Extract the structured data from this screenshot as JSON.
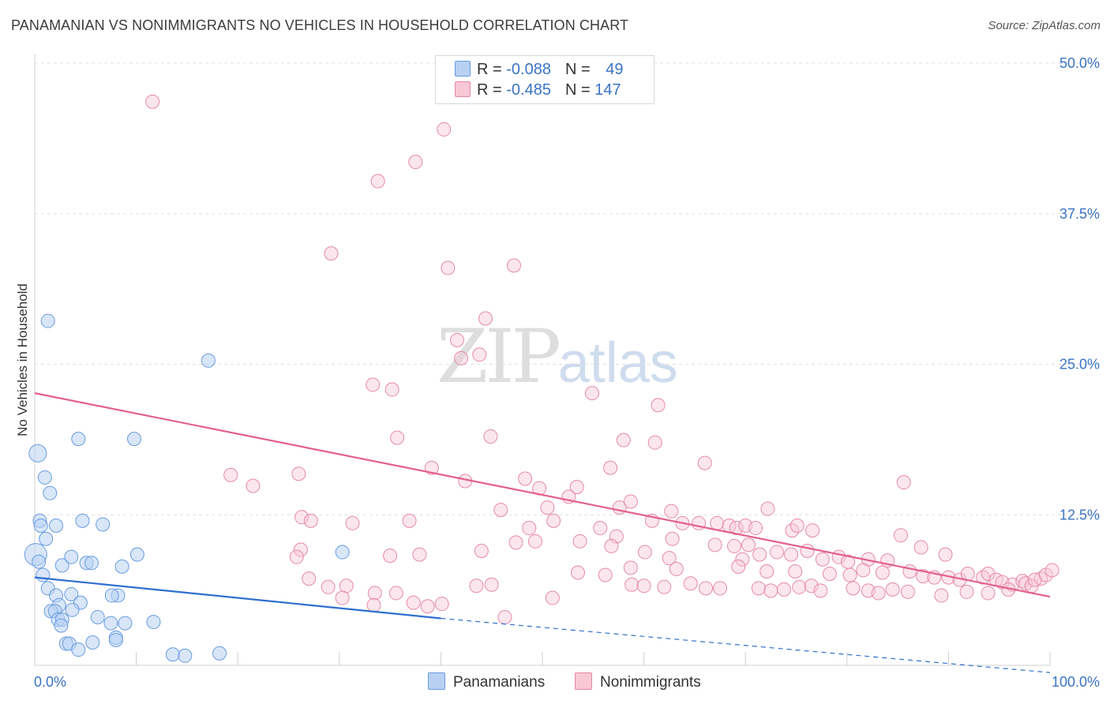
{
  "title": "PANAMANIAN VS NONIMMIGRANTS NO VEHICLES IN HOUSEHOLD CORRELATION CHART",
  "source": "Source: ZipAtlas.com",
  "watermark": {
    "zip": "ZIP",
    "atlas": "atlas"
  },
  "legend": {
    "rows": [
      {
        "r_label": "R = ",
        "r_value": "-0.088",
        "n_label": "N = ",
        "n_value": "49",
        "color": "#b8d1f3",
        "border": "#6a9be0"
      },
      {
        "r_label": "R = ",
        "r_value": "-0.485",
        "n_label": "N = ",
        "n_value": "147",
        "color": "#f9c7d6",
        "border": "#e58aa8"
      }
    ]
  },
  "bottom_legend": [
    {
      "label": "Panamanians",
      "color": "#b8d1f3",
      "border": "#6a9be0"
    },
    {
      "label": "Nonimmigrants",
      "color": "#f9c7d6",
      "border": "#e58aa8"
    }
  ],
  "chart_data": {
    "type": "scatter",
    "ylabel": "No Vehicles in Household",
    "xlim": [
      0,
      100
    ],
    "ylim": [
      0,
      50
    ],
    "x_tick_labels": [
      "0.0%",
      "100.0%"
    ],
    "y_ticks": [
      12.5,
      25.0,
      37.5,
      50.0
    ],
    "y_tick_labels": [
      "12.5%",
      "25.0%",
      "37.5%",
      "50.0%"
    ],
    "grid": "horizontal dashed",
    "colors": {
      "blue": "#5b8fd8",
      "blue_line": "#2f6fd0",
      "pink": "#e87ea0",
      "pink_line": "#e2608c"
    },
    "series": [
      {
        "name": "Panamanians",
        "points": [
          [
            1.3,
            28.6
          ],
          [
            0.3,
            17.6
          ],
          [
            1.0,
            15.6
          ],
          [
            1.5,
            14.3
          ],
          [
            0.5,
            12.0
          ],
          [
            0.6,
            11.6
          ],
          [
            1.1,
            10.5
          ],
          [
            2.1,
            11.6
          ],
          [
            0.1,
            9.2
          ],
          [
            0.4,
            8.6
          ],
          [
            2.7,
            8.3
          ],
          [
            3.6,
            9.0
          ],
          [
            5.1,
            8.5
          ],
          [
            0.8,
            7.5
          ],
          [
            1.3,
            6.4
          ],
          [
            2.1,
            5.8
          ],
          [
            3.6,
            5.9
          ],
          [
            4.5,
            5.2
          ],
          [
            2.4,
            5.0
          ],
          [
            1.6,
            4.5
          ],
          [
            2.0,
            4.5
          ],
          [
            3.7,
            4.6
          ],
          [
            2.3,
            3.8
          ],
          [
            2.7,
            3.8
          ],
          [
            2.6,
            3.3
          ],
          [
            6.2,
            4.0
          ],
          [
            7.5,
            3.5
          ],
          [
            8.2,
            5.8
          ],
          [
            8.9,
            3.5
          ],
          [
            7.6,
            5.8
          ],
          [
            3.1,
            1.8
          ],
          [
            3.4,
            1.8
          ],
          [
            4.3,
            1.3
          ],
          [
            5.7,
            1.9
          ],
          [
            8.0,
            2.3
          ],
          [
            8.0,
            2.1
          ],
          [
            11.7,
            3.6
          ],
          [
            13.6,
            0.9
          ],
          [
            14.8,
            0.8
          ],
          [
            18.2,
            1.0
          ],
          [
            4.3,
            18.8
          ],
          [
            9.8,
            18.8
          ],
          [
            4.7,
            12.0
          ],
          [
            6.7,
            11.7
          ],
          [
            10.1,
            9.2
          ],
          [
            8.6,
            8.2
          ],
          [
            5.6,
            8.5
          ],
          [
            17.1,
            25.3
          ],
          [
            30.3,
            9.4
          ]
        ],
        "trend": {
          "x0": 0,
          "y0": 7.3,
          "x1": 40,
          "y1": 3.9,
          "dash_to_x": 100,
          "dash_to_y": -0.6
        }
      },
      {
        "name": "Nonimmigrants",
        "points": [
          [
            11.6,
            46.8
          ],
          [
            40.3,
            44.5
          ],
          [
            37.5,
            41.8
          ],
          [
            33.8,
            40.2
          ],
          [
            29.2,
            34.2
          ],
          [
            40.7,
            33.0
          ],
          [
            47.2,
            33.2
          ],
          [
            44.4,
            28.8
          ],
          [
            41.6,
            27.0
          ],
          [
            42.0,
            25.5
          ],
          [
            43.8,
            25.8
          ],
          [
            33.3,
            23.3
          ],
          [
            35.2,
            22.9
          ],
          [
            54.9,
            22.6
          ],
          [
            61.4,
            21.6
          ],
          [
            35.7,
            18.9
          ],
          [
            44.9,
            19.0
          ],
          [
            58.0,
            18.7
          ],
          [
            61.1,
            18.5
          ],
          [
            66.0,
            16.8
          ],
          [
            39.1,
            16.4
          ],
          [
            26.0,
            15.9
          ],
          [
            19.3,
            15.8
          ],
          [
            21.5,
            14.9
          ],
          [
            48.3,
            15.5
          ],
          [
            49.7,
            14.7
          ],
          [
            53.4,
            14.8
          ],
          [
            56.7,
            16.4
          ],
          [
            85.6,
            15.2
          ],
          [
            42.4,
            15.3
          ],
          [
            52.6,
            14.0
          ],
          [
            50.5,
            13.1
          ],
          [
            45.9,
            12.9
          ],
          [
            57.6,
            13.1
          ],
          [
            58.7,
            13.6
          ],
          [
            62.7,
            12.8
          ],
          [
            72.2,
            13.0
          ],
          [
            26.3,
            12.3
          ],
          [
            27.2,
            12.0
          ],
          [
            31.3,
            11.8
          ],
          [
            36.9,
            12.0
          ],
          [
            51.1,
            12.0
          ],
          [
            60.8,
            12.0
          ],
          [
            63.8,
            11.8
          ],
          [
            65.4,
            11.8
          ],
          [
            67.2,
            11.8
          ],
          [
            68.4,
            11.6
          ],
          [
            69.1,
            11.4
          ],
          [
            70.0,
            11.6
          ],
          [
            71.0,
            11.4
          ],
          [
            74.6,
            11.2
          ],
          [
            75.1,
            11.6
          ],
          [
            76.6,
            11.2
          ],
          [
            48.7,
            11.4
          ],
          [
            55.7,
            11.4
          ],
          [
            57.3,
            10.7
          ],
          [
            62.8,
            10.5
          ],
          [
            49.3,
            10.3
          ],
          [
            47.4,
            10.2
          ],
          [
            53.7,
            10.3
          ],
          [
            85.3,
            10.8
          ],
          [
            26.2,
            9.6
          ],
          [
            35.0,
            9.1
          ],
          [
            37.9,
            9.2
          ],
          [
            44.0,
            9.5
          ],
          [
            56.8,
            9.9
          ],
          [
            60.1,
            9.4
          ],
          [
            62.5,
            8.9
          ],
          [
            69.7,
            8.8
          ],
          [
            71.4,
            9.2
          ],
          [
            70.3,
            10.0
          ],
          [
            73.1,
            9.4
          ],
          [
            74.5,
            9.2
          ],
          [
            76.1,
            9.5
          ],
          [
            77.6,
            8.8
          ],
          [
            79.2,
            9.0
          ],
          [
            80.1,
            8.6
          ],
          [
            82.1,
            8.8
          ],
          [
            84.0,
            8.7
          ],
          [
            87.3,
            9.8
          ],
          [
            89.7,
            9.2
          ],
          [
            67.0,
            10.0
          ],
          [
            68.9,
            9.9
          ],
          [
            58.7,
            8.1
          ],
          [
            63.2,
            8.0
          ],
          [
            69.3,
            8.2
          ],
          [
            72.1,
            7.8
          ],
          [
            74.9,
            7.8
          ],
          [
            78.3,
            7.6
          ],
          [
            80.3,
            7.5
          ],
          [
            81.6,
            7.9
          ],
          [
            83.5,
            7.7
          ],
          [
            86.2,
            7.8
          ],
          [
            87.5,
            7.4
          ],
          [
            88.6,
            7.3
          ],
          [
            90.0,
            7.3
          ],
          [
            91.1,
            7.1
          ],
          [
            91.9,
            7.6
          ],
          [
            93.4,
            7.3
          ],
          [
            93.9,
            7.6
          ],
          [
            94.7,
            7.1
          ],
          [
            95.3,
            6.9
          ],
          [
            96.3,
            6.7
          ],
          [
            97.3,
            7.0
          ],
          [
            97.6,
            6.8
          ],
          [
            98.2,
            6.6
          ],
          [
            99.1,
            7.2
          ],
          [
            98.5,
            7.1
          ],
          [
            99.6,
            7.5
          ],
          [
            100.2,
            7.9
          ],
          [
            27.0,
            7.2
          ],
          [
            28.9,
            6.5
          ],
          [
            30.7,
            6.6
          ],
          [
            30.3,
            5.6
          ],
          [
            33.5,
            6.0
          ],
          [
            33.4,
            5.0
          ],
          [
            35.6,
            6.0
          ],
          [
            37.3,
            5.2
          ],
          [
            38.7,
            4.9
          ],
          [
            40.1,
            5.1
          ],
          [
            43.5,
            6.6
          ],
          [
            45.0,
            6.7
          ],
          [
            46.3,
            4.0
          ],
          [
            51.0,
            5.6
          ],
          [
            53.5,
            7.7
          ],
          [
            56.2,
            7.5
          ],
          [
            58.8,
            6.7
          ],
          [
            60.0,
            6.6
          ],
          [
            62.0,
            6.5
          ],
          [
            64.6,
            6.8
          ],
          [
            66.1,
            6.4
          ],
          [
            67.5,
            6.4
          ],
          [
            71.3,
            6.4
          ],
          [
            72.5,
            6.2
          ],
          [
            73.8,
            6.3
          ],
          [
            75.3,
            6.5
          ],
          [
            76.5,
            6.6
          ],
          [
            77.4,
            6.2
          ],
          [
            80.6,
            6.4
          ],
          [
            82.1,
            6.2
          ],
          [
            83.1,
            6.0
          ],
          [
            84.5,
            6.3
          ],
          [
            86.0,
            6.1
          ],
          [
            89.3,
            5.8
          ],
          [
            91.8,
            6.1
          ],
          [
            93.9,
            6.0
          ],
          [
            95.9,
            6.3
          ],
          [
            25.8,
            9.0
          ]
        ],
        "trend": {
          "x0": 0,
          "y0": 22.6,
          "x1": 100,
          "y1": 5.7
        }
      }
    ]
  }
}
